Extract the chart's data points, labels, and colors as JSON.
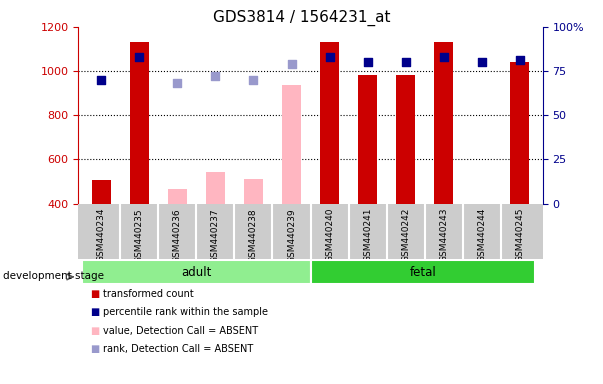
{
  "title": "GDS3814 / 1564231_at",
  "samples": [
    "GSM440234",
    "GSM440235",
    "GSM440236",
    "GSM440237",
    "GSM440238",
    "GSM440239",
    "GSM440240",
    "GSM440241",
    "GSM440242",
    "GSM440243",
    "GSM440244",
    "GSM440245"
  ],
  "groups": [
    "adult",
    "adult",
    "adult",
    "adult",
    "adult",
    "adult",
    "fetal",
    "fetal",
    "fetal",
    "fetal",
    "fetal",
    "fetal"
  ],
  "transformed_count": [
    506,
    1130,
    null,
    null,
    null,
    null,
    1130,
    980,
    980,
    1130,
    null,
    1040
  ],
  "transformed_count_absent": [
    null,
    null,
    465,
    543,
    510,
    935,
    null,
    null,
    null,
    null,
    null,
    null
  ],
  "percentile_rank": [
    70,
    83,
    null,
    null,
    null,
    null,
    83,
    80,
    80,
    83,
    80,
    81
  ],
  "percentile_rank_absent": [
    null,
    null,
    68,
    72,
    70,
    79,
    null,
    null,
    null,
    null,
    null,
    null
  ],
  "ylim_left": [
    400,
    1200
  ],
  "ylim_right": [
    0,
    100
  ],
  "yticks_left": [
    400,
    600,
    800,
    1000,
    1200
  ],
  "yticks_right": [
    0,
    25,
    50,
    75,
    100
  ],
  "ytick_labels_right": [
    "0",
    "25",
    "50",
    "75",
    "100%"
  ],
  "adult_color": "#90EE90",
  "fetal_color": "#32CD32",
  "bar_color_present": "#CC0000",
  "bar_color_absent": "#FFB6C1",
  "rank_color_present": "#00008B",
  "rank_color_absent": "#9999CC",
  "bar_width": 0.5,
  "rank_marker_size": 30,
  "cell_bg_color": "#cccccc",
  "cell_line_color": "#ffffff",
  "legend_items": [
    {
      "color": "#CC0000",
      "label": "transformed count"
    },
    {
      "color": "#00008B",
      "label": "percentile rank within the sample"
    },
    {
      "color": "#FFB6C1",
      "label": "value, Detection Call = ABSENT"
    },
    {
      "color": "#9999CC",
      "label": "rank, Detection Call = ABSENT"
    }
  ]
}
